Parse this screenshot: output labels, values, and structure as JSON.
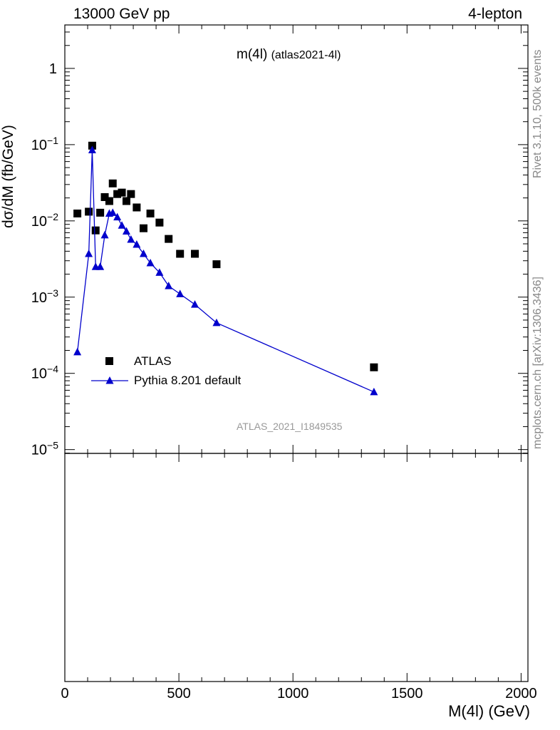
{
  "header": {
    "left": "13000 GeV pp",
    "right": "4-lepton"
  },
  "plot_title": {
    "main": "m(4l)",
    "sub": "(atlas2021-4l)"
  },
  "side_text": {
    "top": "Rivet 3.1.10,  500k events",
    "bottom": "mcplots.cern.ch [arXiv:1306.3436]"
  },
  "watermark": "ATLAS_2021_I1849535",
  "chart_data": {
    "type": "scatter",
    "ylabel": "dσ/dM (fb/GeV)",
    "xlabel": "M(4l) (GeV)",
    "xlim": [
      0,
      2030
    ],
    "ylim_log10": [
      -5.05,
      0.57
    ],
    "yscale": "log",
    "x_ticks": [
      "0",
      "500",
      "1000",
      "1500",
      "2000"
    ],
    "y_ticks": [
      {
        "base": "1",
        "exp": ""
      },
      {
        "base": "10",
        "exp": "−1"
      },
      {
        "base": "10",
        "exp": "−2"
      },
      {
        "base": "10",
        "exp": "−3"
      },
      {
        "base": "10",
        "exp": "−4"
      },
      {
        "base": "10",
        "exp": "−5"
      }
    ],
    "legend_position": "bottom-left",
    "series": [
      {
        "name": "ATLAS",
        "marker": "square",
        "color": "#000000",
        "x": [
          55,
          105,
          120,
          135,
          155,
          175,
          195,
          210,
          230,
          250,
          270,
          290,
          315,
          345,
          375,
          415,
          455,
          505,
          570,
          665,
          1355
        ],
        "y": [
          0.0125,
          0.0132,
          0.097,
          0.0075,
          0.0128,
          0.0205,
          0.0182,
          0.031,
          0.0225,
          0.0235,
          0.0182,
          0.0225,
          0.015,
          0.008,
          0.0125,
          0.0095,
          0.0058,
          0.0037,
          0.0037,
          0.0027,
          0.00012
        ]
      },
      {
        "name": "Pythia 8.201 default",
        "marker": "triangle",
        "color": "#0000cc",
        "x": [
          55,
          105,
          120,
          135,
          155,
          175,
          195,
          210,
          230,
          250,
          270,
          290,
          315,
          345,
          375,
          415,
          455,
          505,
          570,
          665,
          1355
        ],
        "y": [
          0.00019,
          0.0037,
          0.085,
          0.0025,
          0.0025,
          0.0065,
          0.0125,
          0.0128,
          0.0112,
          0.0087,
          0.0073,
          0.0057,
          0.0049,
          0.0037,
          0.0028,
          0.0021,
          0.0014,
          0.0011,
          0.0008,
          0.00046,
          5.7e-05
        ]
      }
    ]
  }
}
